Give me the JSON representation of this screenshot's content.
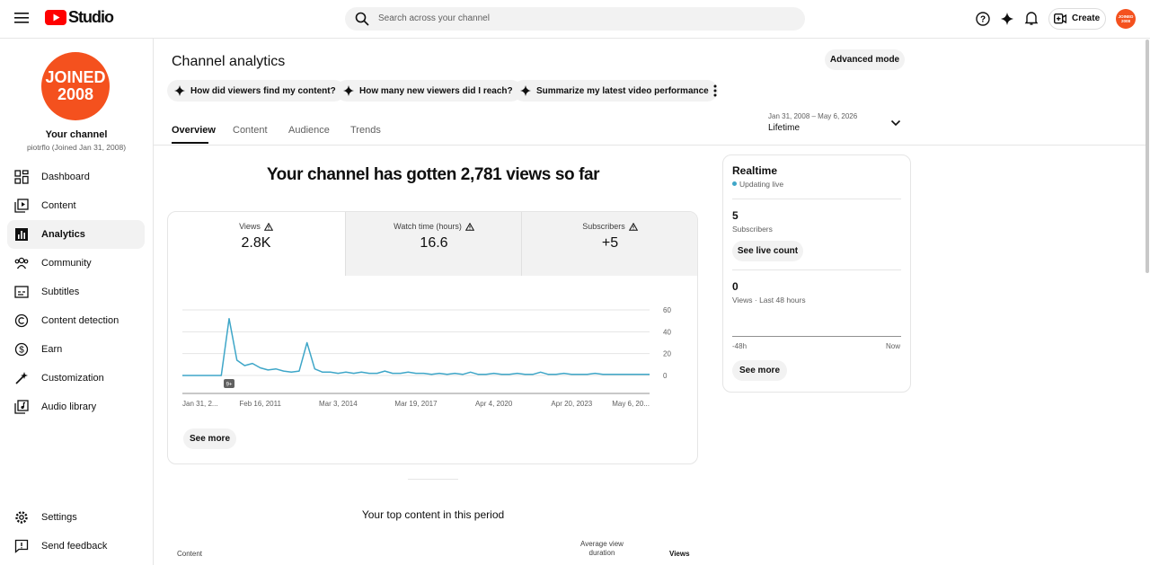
{
  "header": {
    "logo_text": "Studio",
    "search_placeholder": "Search across your channel",
    "create_button": "Create",
    "avatar_lines": [
      "JOINED",
      "2008"
    ]
  },
  "sidebar": {
    "channel_label": "Your channel",
    "channel_handle": "piotrflo (Joined Jan 31, 2008)",
    "nav": [
      "Dashboard",
      "Content",
      "Analytics",
      "Community",
      "Subtitles",
      "Content detection",
      "Earn",
      "Customization",
      "Audio library"
    ],
    "footer_nav": [
      "Settings",
      "Send feedback"
    ]
  },
  "page": {
    "title": "Channel analytics",
    "advanced_mode": "Advanced mode",
    "suggestions": [
      "How did viewers find my content?",
      "How many new viewers did I reach?",
      "Summarize my latest video performance"
    ],
    "tabs": [
      "Overview",
      "Content",
      "Audience",
      "Trends"
    ],
    "date_range": "Jan 31, 2008 – May 6, 2026",
    "period": "Lifetime",
    "headline": "Your channel has gotten 2,781 views so far",
    "metrics": [
      {
        "label": "Views",
        "value": "2.8K"
      },
      {
        "label": "Watch time (hours)",
        "value": "16.6"
      },
      {
        "label": "Subscribers",
        "value": "+5"
      }
    ],
    "see_more": "See more",
    "top_content_title": "Your top content in this period",
    "table_headers": [
      "Content",
      "Average view duration",
      "Views"
    ]
  },
  "chart_data": {
    "type": "line",
    "categories": [
      "Jan 31, 2...",
      null,
      null,
      null,
      null,
      null,
      null,
      null,
      null,
      null,
      "Feb 16, 2011",
      null,
      null,
      null,
      null,
      null,
      null,
      null,
      null,
      null,
      "Mar 3, 2014",
      null,
      null,
      null,
      null,
      null,
      null,
      null,
      null,
      null,
      "Mar 19, 2017",
      null,
      null,
      null,
      null,
      null,
      null,
      null,
      null,
      null,
      "Apr 4, 2020",
      null,
      null,
      null,
      null,
      null,
      null,
      null,
      null,
      null,
      "Apr 20, 2023",
      null,
      null,
      null,
      null,
      null,
      null,
      null,
      null,
      null,
      "May 6, 20..."
    ],
    "values": [
      0,
      0,
      0,
      0,
      0,
      0,
      52,
      14,
      9,
      11,
      7,
      5,
      6,
      4,
      3,
      4,
      30,
      6,
      3,
      3,
      2,
      3,
      2,
      3,
      2,
      2,
      4,
      2,
      2,
      3,
      2,
      2,
      1,
      2,
      1,
      2,
      1,
      3,
      1,
      1,
      2,
      1,
      1,
      2,
      1,
      1,
      3,
      1,
      1,
      2,
      1,
      1,
      1,
      2,
      1,
      1,
      1,
      1,
      1,
      1,
      1
    ],
    "color": "#3ea6c8",
    "ylim": [
      0,
      60
    ],
    "yticks": [
      0,
      20,
      40,
      60
    ],
    "grid": true,
    "annotation": "9+"
  },
  "realtime": {
    "title": "Realtime",
    "status": "Updating live",
    "subscribers_value": 5,
    "subscribers_label": "Subscribers",
    "live_count_button": "See live count",
    "views_value": 0,
    "views_label": "Views · Last 48 hours",
    "axis_start": "-48h",
    "axis_end": "Now",
    "see_more": "See more"
  }
}
